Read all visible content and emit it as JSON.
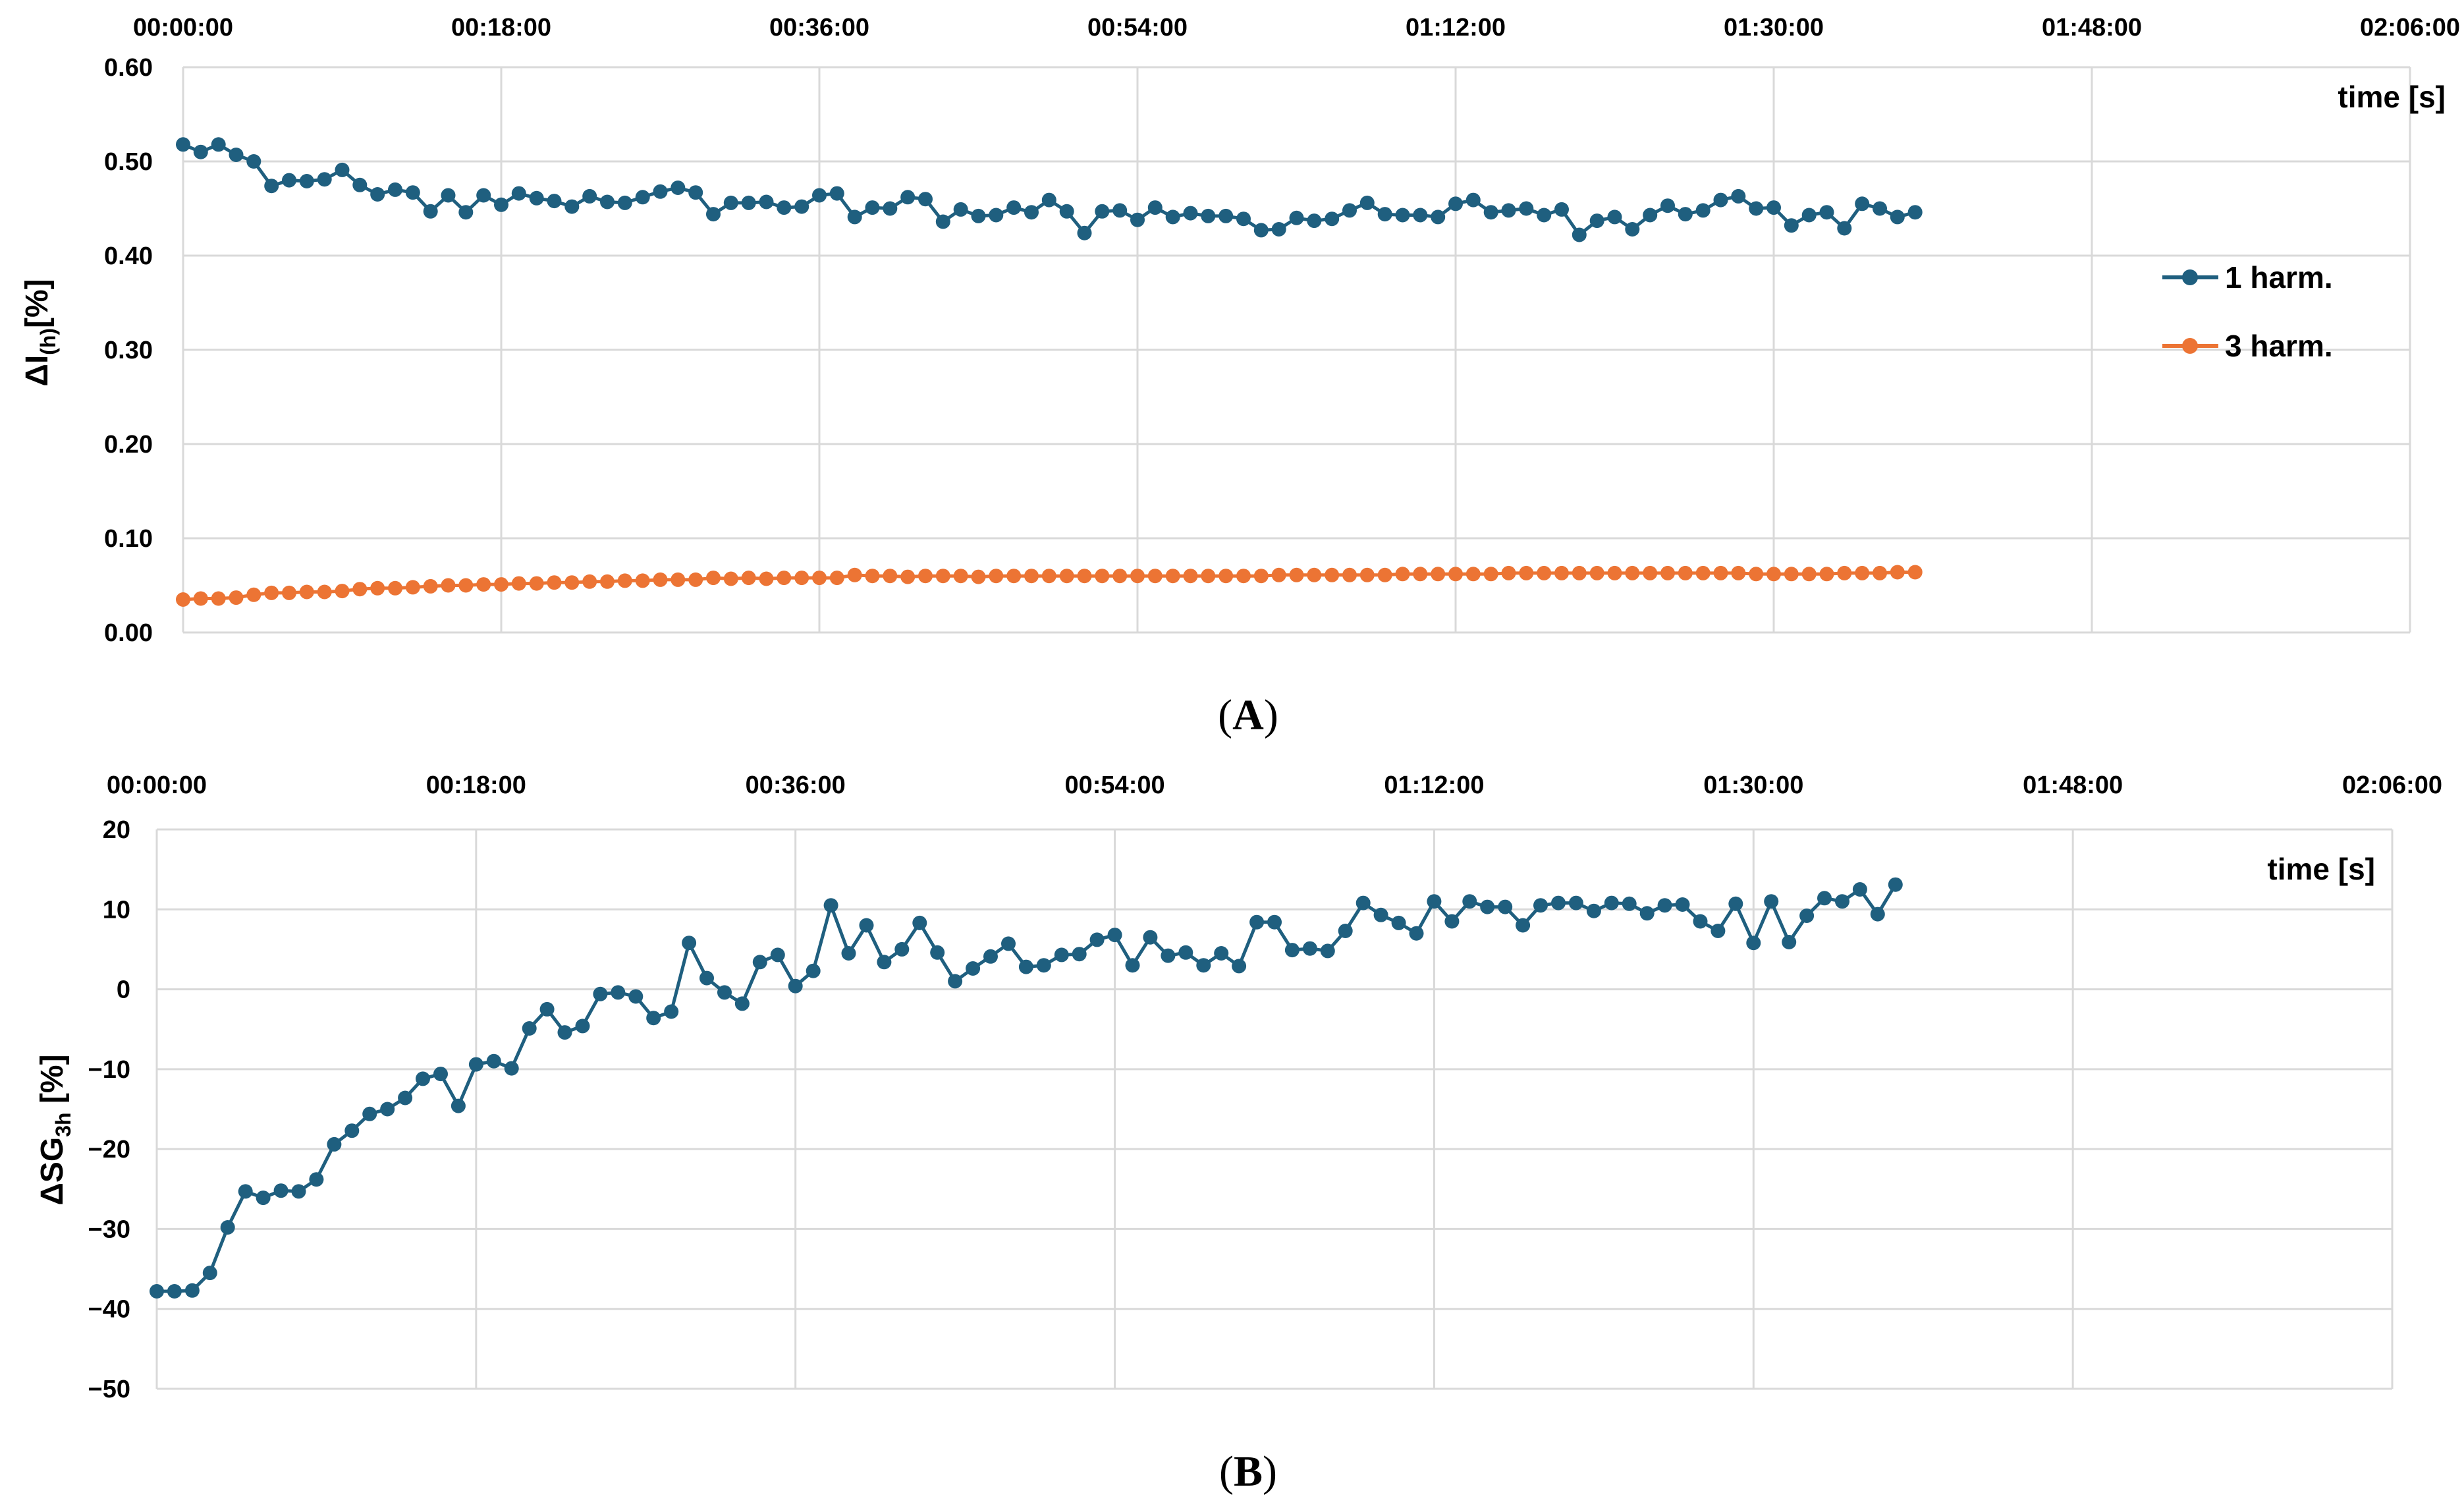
{
  "colors": {
    "series_1harm": "#1f5f7f",
    "series_3harm": "#ec7434",
    "series_sg3h": "#1f5f7f",
    "grid": "#d9d9d9"
  },
  "panels": {
    "a": {
      "label_open": "(",
      "label_letter": "A",
      "label_close": ")"
    },
    "b": {
      "label_open": "(",
      "label_letter": "B",
      "label_close": ")"
    }
  },
  "chart_data": [
    {
      "type": "line",
      "panel": "A",
      "xlabel": "time [s]",
      "ylabel_main": "ΔI",
      "ylabel_sub": "(h)",
      "ylabel_tail": "[%]",
      "x_ticks": [
        "00:00:00",
        "00:18:00",
        "00:36:00",
        "00:54:00",
        "01:12:00",
        "01:30:00",
        "01:48:00",
        "02:06:00"
      ],
      "xlim_minutes": [
        0,
        126
      ],
      "y_ticks": [
        "0.00",
        "0.10",
        "0.20",
        "0.30",
        "0.40",
        "0.50",
        "0.60"
      ],
      "ylim": [
        0,
        0.6
      ],
      "x_axis_position": "top",
      "grid": true,
      "legend_position": "right",
      "series": [
        {
          "name": "1 harm.",
          "color": "#1f5f7f",
          "x_minutes_step": 1,
          "values": [
            0.518,
            0.51,
            0.518,
            0.507,
            0.5,
            0.474,
            0.48,
            0.479,
            0.481,
            0.491,
            0.475,
            0.465,
            0.47,
            0.467,
            0.447,
            0.464,
            0.446,
            0.464,
            0.454,
            0.466,
            0.461,
            0.458,
            0.452,
            0.463,
            0.457,
            0.456,
            0.462,
            0.468,
            0.472,
            0.467,
            0.444,
            0.456,
            0.456,
            0.457,
            0.451,
            0.452,
            0.464,
            0.466,
            0.441,
            0.451,
            0.45,
            0.462,
            0.46,
            0.436,
            0.449,
            0.442,
            0.443,
            0.451,
            0.446,
            0.459,
            0.447,
            0.424,
            0.447,
            0.448,
            0.438,
            0.451,
            0.441,
            0.445,
            0.442,
            0.442,
            0.439,
            0.427,
            0.428,
            0.44,
            0.437,
            0.439,
            0.448,
            0.456,
            0.444,
            0.443,
            0.443,
            0.441,
            0.455,
            0.459,
            0.446,
            0.448,
            0.45,
            0.443,
            0.449,
            0.422,
            0.437,
            0.441,
            0.428,
            0.443,
            0.453,
            0.444,
            0.448,
            0.459,
            0.463,
            0.45,
            0.451,
            0.432,
            0.443,
            0.446,
            0.429,
            0.455,
            0.45,
            0.441,
            0.446
          ]
        },
        {
          "name": "3 harm.",
          "color": "#ec7434",
          "x_minutes_step": 1,
          "values": [
            0.035,
            0.036,
            0.036,
            0.037,
            0.04,
            0.042,
            0.042,
            0.043,
            0.043,
            0.044,
            0.046,
            0.047,
            0.047,
            0.048,
            0.049,
            0.05,
            0.05,
            0.051,
            0.051,
            0.052,
            0.052,
            0.053,
            0.053,
            0.054,
            0.054,
            0.055,
            0.055,
            0.056,
            0.056,
            0.056,
            0.058,
            0.057,
            0.058,
            0.057,
            0.058,
            0.058,
            0.058,
            0.058,
            0.061,
            0.06,
            0.06,
            0.059,
            0.06,
            0.06,
            0.06,
            0.059,
            0.06,
            0.06,
            0.06,
            0.06,
            0.06,
            0.06,
            0.06,
            0.06,
            0.06,
            0.06,
            0.06,
            0.06,
            0.06,
            0.06,
            0.06,
            0.06,
            0.061,
            0.061,
            0.061,
            0.061,
            0.061,
            0.061,
            0.061,
            0.062,
            0.062,
            0.062,
            0.062,
            0.062,
            0.062,
            0.063,
            0.063,
            0.063,
            0.063,
            0.063,
            0.063,
            0.063,
            0.063,
            0.063,
            0.063,
            0.063,
            0.063,
            0.063,
            0.063,
            0.062,
            0.062,
            0.062,
            0.062,
            0.062,
            0.063,
            0.063,
            0.063,
            0.064,
            0.064
          ]
        }
      ]
    },
    {
      "type": "line",
      "panel": "B",
      "xlabel": "time [s]",
      "ylabel_main": "ΔSG",
      "ylabel_sub": "3h",
      "ylabel_tail": " [%]",
      "x_ticks": [
        "00:00:00",
        "00:18:00",
        "00:36:00",
        "00:54:00",
        "01:12:00",
        "01:30:00",
        "01:48:00",
        "02:06:00"
      ],
      "xlim_minutes": [
        0,
        126
      ],
      "y_ticks": [
        "−50",
        "−40",
        "−30",
        "−20",
        "−10",
        "0",
        "10",
        "20"
      ],
      "ylim": [
        -50,
        20
      ],
      "x_axis_position": "top",
      "grid": true,
      "series": [
        {
          "color": "#1f5f7f",
          "x_minutes_step": 1,
          "values": [
            -37.8,
            -37.8,
            -37.7,
            -35.5,
            -29.8,
            -25.3,
            -26.1,
            -25.2,
            -25.3,
            -23.8,
            -19.4,
            -17.7,
            -15.6,
            -15.0,
            -13.6,
            -11.2,
            -10.6,
            -14.6,
            -9.4,
            -9.0,
            -9.9,
            -4.9,
            -2.5,
            -5.4,
            -4.6,
            -0.6,
            -0.4,
            -0.9,
            -3.6,
            -2.8,
            5.8,
            1.4,
            -0.4,
            -1.8,
            3.4,
            4.3,
            0.4,
            2.3,
            10.5,
            4.5,
            8.0,
            3.4,
            5.0,
            8.3,
            4.6,
            1.0,
            2.6,
            4.1,
            5.7,
            2.8,
            3.0,
            4.3,
            4.4,
            6.2,
            6.8,
            3.0,
            6.5,
            4.2,
            4.6,
            3.0,
            4.5,
            2.9,
            8.4,
            8.4,
            4.9,
            5.1,
            4.8,
            7.3,
            10.8,
            9.3,
            8.3,
            7.0,
            11.0,
            8.5,
            11.0,
            10.3,
            10.3,
            8.0,
            10.5,
            10.8,
            10.8,
            9.8,
            10.8,
            10.7,
            9.5,
            10.5,
            10.6,
            8.5,
            7.3,
            10.7,
            5.8,
            11.0,
            5.9,
            9.2,
            11.4,
            11.0,
            12.5,
            9.4,
            13.1
          ]
        }
      ]
    }
  ]
}
